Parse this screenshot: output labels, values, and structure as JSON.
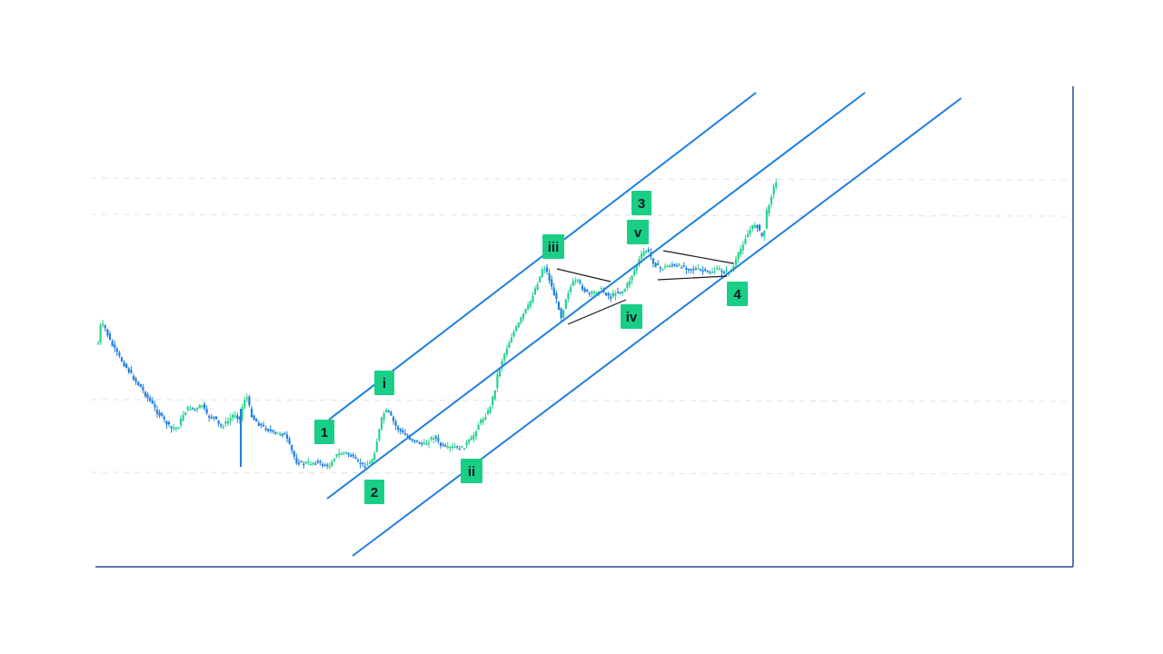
{
  "colors": {
    "background": "#ffffff",
    "axis": "#2b4a8c",
    "grid": "#d9e4f1",
    "channel": "#1e7fe0",
    "trendline": "#1a1a1a",
    "candle_up": "#28d28c",
    "candle_down": "#1e7fe0",
    "label_box": "#19cf86",
    "label_text": "#0b1a2a"
  },
  "chart_data": {
    "type": "candlestick",
    "title": "",
    "xlabel": "",
    "ylabel": "",
    "grid": "horizontal-dashed",
    "price_path": [
      [
        0,
        378
      ],
      [
        3,
        356
      ],
      [
        8,
        362
      ],
      [
        14,
        378
      ],
      [
        20,
        388
      ],
      [
        28,
        400
      ],
      [
        38,
        415
      ],
      [
        48,
        428
      ],
      [
        56,
        440
      ],
      [
        64,
        452
      ],
      [
        72,
        462
      ],
      [
        80,
        472
      ],
      [
        88,
        470
      ],
      [
        94,
        455
      ],
      [
        100,
        448
      ],
      [
        108,
        452
      ],
      [
        114,
        445
      ],
      [
        120,
        458
      ],
      [
        128,
        460
      ],
      [
        134,
        470
      ],
      [
        142,
        465
      ],
      [
        150,
        455
      ],
      [
        156,
        462
      ],
      [
        160,
        440
      ],
      [
        164,
        438
      ],
      [
        168,
        455
      ],
      [
        172,
        462
      ],
      [
        178,
        468
      ],
      [
        186,
        472
      ],
      [
        194,
        478
      ],
      [
        200,
        476
      ],
      [
        206,
        480
      ],
      [
        212,
        494
      ],
      [
        218,
        508
      ],
      [
        224,
        510
      ],
      [
        232,
        510
      ],
      [
        240,
        508
      ],
      [
        248,
        512
      ],
      [
        254,
        514
      ],
      [
        258,
        505
      ],
      [
        264,
        500
      ],
      [
        272,
        498
      ],
      [
        278,
        502
      ],
      [
        284,
        508
      ],
      [
        292,
        512
      ],
      [
        300,
        510
      ],
      [
        304,
        498
      ],
      [
        308,
        480
      ],
      [
        312,
        462
      ],
      [
        316,
        452
      ],
      [
        320,
        455
      ],
      [
        324,
        462
      ],
      [
        328,
        470
      ],
      [
        334,
        476
      ],
      [
        342,
        482
      ],
      [
        350,
        486
      ],
      [
        358,
        490
      ],
      [
        364,
        485
      ],
      [
        370,
        480
      ],
      [
        376,
        490
      ],
      [
        384,
        494
      ],
      [
        392,
        492
      ],
      [
        400,
        494
      ],
      [
        406,
        488
      ],
      [
        412,
        482
      ],
      [
        418,
        468
      ],
      [
        424,
        460
      ],
      [
        430,
        452
      ],
      [
        436,
        432
      ],
      [
        440,
        410
      ],
      [
        444,
        398
      ],
      [
        450,
        382
      ],
      [
        456,
        368
      ],
      [
        462,
        358
      ],
      [
        468,
        346
      ],
      [
        474,
        336
      ],
      [
        480,
        320
      ],
      [
        486,
        305
      ],
      [
        490,
        292
      ],
      [
        494,
        300
      ],
      [
        498,
        312
      ],
      [
        502,
        325
      ],
      [
        506,
        335
      ],
      [
        510,
        350
      ],
      [
        514,
        330
      ],
      [
        518,
        320
      ],
      [
        522,
        312
      ],
      [
        528,
        310
      ],
      [
        534,
        318
      ],
      [
        540,
        325
      ],
      [
        546,
        322
      ],
      [
        552,
        318
      ],
      [
        558,
        322
      ],
      [
        564,
        328
      ],
      [
        570,
        320
      ],
      [
        576,
        322
      ],
      [
        580,
        318
      ],
      [
        584,
        310
      ],
      [
        588,
        302
      ],
      [
        592,
        294
      ],
      [
        596,
        285
      ],
      [
        600,
        278
      ],
      [
        604,
        275
      ],
      [
        608,
        282
      ],
      [
        612,
        290
      ],
      [
        618,
        296
      ],
      [
        624,
        294
      ],
      [
        630,
        291
      ],
      [
        636,
        294
      ],
      [
        642,
        292
      ],
      [
        648,
        295
      ],
      [
        654,
        296
      ],
      [
        660,
        297
      ],
      [
        666,
        298
      ],
      [
        672,
        300
      ],
      [
        678,
        298
      ],
      [
        684,
        297
      ],
      [
        690,
        300
      ],
      [
        696,
        298
      ],
      [
        700,
        292
      ],
      [
        704,
        282
      ],
      [
        708,
        272
      ],
      [
        712,
        262
      ],
      [
        716,
        256
      ],
      [
        720,
        250
      ],
      [
        724,
        245
      ],
      [
        728,
        256
      ],
      [
        732,
        262
      ],
      [
        736,
        232
      ],
      [
        740,
        218
      ],
      [
        744,
        205
      ],
      [
        747,
        200
      ]
    ],
    "annotations": [
      {
        "label": "1",
        "box": "square"
      },
      {
        "label": "2",
        "box": "square"
      },
      {
        "label": "3",
        "box": "square"
      },
      {
        "label": "4",
        "box": "square"
      },
      {
        "label": "i",
        "box": "square"
      },
      {
        "label": "ii",
        "box": "square"
      },
      {
        "label": "iii",
        "box": "square"
      },
      {
        "label": "iv",
        "box": "square"
      },
      {
        "label": "v",
        "box": "square"
      }
    ]
  }
}
